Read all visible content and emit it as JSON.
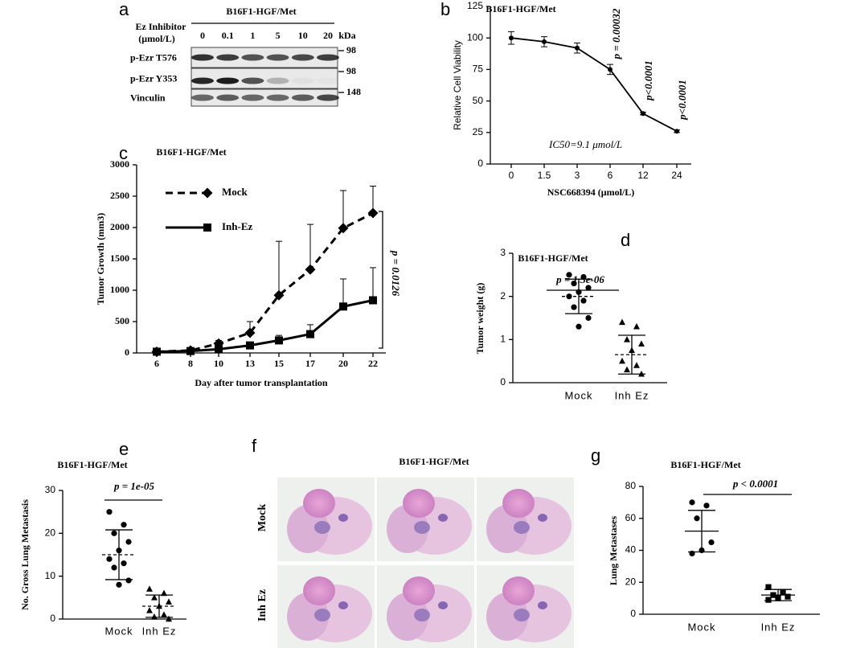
{
  "blot": {
    "panel": "a",
    "title": "B16F1-HGF/Met",
    "treatment": [
      "Ez Inhibitor",
      "(μmol/L)"
    ],
    "lanes": [
      "0",
      "0.1",
      "1",
      "5",
      "10",
      "20"
    ],
    "unit": "kDa",
    "rows": [
      {
        "label": "p-Ezr T576",
        "marker": "98"
      },
      {
        "label": "p-Ezr Y353",
        "marker": "98"
      },
      {
        "label": "Vinculin",
        "marker": "148"
      }
    ]
  },
  "histology": {
    "panel": "f",
    "title": "B16F1-HGF/Met",
    "rows": [
      "Mock",
      "Inh Ez"
    ]
  },
  "chart_data": [
    {
      "panel": "b",
      "type": "line",
      "title": "B16F1-HGF/Met",
      "xlabel": "NSC668394 (μmol/L)",
      "ylabel": "Relative Cell Viability",
      "categories": [
        "0",
        "1.5",
        "3",
        "6",
        "12",
        "24"
      ],
      "series": [
        {
          "color": "#000000",
          "marker": "circle",
          "values": [
            100,
            97,
            92,
            75,
            40,
            26
          ],
          "errors": [
            5,
            4,
            4,
            4,
            1,
            1
          ]
        }
      ],
      "ylim": [
        0,
        125
      ],
      "yticks": [
        0,
        25,
        50,
        75,
        100,
        125
      ],
      "annotations": [
        "p = 0.00032",
        "p<0.0001",
        "p<0.0001",
        "IC50=9.1 μmol/L"
      ]
    },
    {
      "panel": "c",
      "type": "line",
      "title": "B16F1-HGF/Met",
      "xlabel": "Day after tumor transplantation",
      "ylabel": "Tumor Growth (mm3)",
      "categories": [
        "6",
        "8",
        "10",
        "13",
        "15",
        "17",
        "20",
        "22"
      ],
      "series": [
        {
          "name": "Mock",
          "color": "#000000",
          "dashed": true,
          "marker": "diamond",
          "values": [
            20,
            40,
            150,
            320,
            920,
            1330,
            1990,
            2230
          ],
          "errors": [
            0,
            0,
            50,
            180,
            860,
            720,
            600,
            430
          ]
        },
        {
          "name": "Inh-Ez",
          "color": "#000000",
          "dashed": false,
          "marker": "square",
          "values": [
            20,
            30,
            60,
            120,
            200,
            300,
            740,
            840
          ],
          "errors": [
            0,
            0,
            0,
            0,
            80,
            150,
            440,
            520
          ]
        }
      ],
      "ylim": [
        0,
        3000
      ],
      "yticks": [
        0,
        500,
        1000,
        1500,
        2000,
        2500,
        3000
      ],
      "annotations": [
        "p = 0.0126"
      ]
    },
    {
      "panel": "d",
      "type": "dot",
      "title": "B16F1-HGF/Met",
      "ylabel": "Tumor weight (g)",
      "categories": [
        "Mock",
        "Inh Ez"
      ],
      "groups": [
        {
          "marker": "circle",
          "values": [
            2.5,
            2.45,
            2.3,
            2.2,
            2.1,
            2.0,
            1.9,
            1.75,
            1.5,
            1.3
          ],
          "mean": 2.0,
          "sd": 0.4
        },
        {
          "marker": "triangle",
          "values": [
            1.4,
            1.3,
            1.0,
            0.9,
            0.75,
            0.5,
            0.4,
            0.3,
            0.2
          ],
          "mean": 0.65,
          "sd": 0.45
        }
      ],
      "mean_dashed": true,
      "ylim": [
        0,
        3
      ],
      "yticks": [
        0,
        1,
        2,
        3
      ],
      "annotations": [
        "p = 1.3e-06"
      ]
    },
    {
      "panel": "e",
      "type": "dot",
      "title": "B16F1-HGF/Met",
      "ylabel": "No. Gross Lung Metastasis",
      "categories": [
        "Mock",
        "Inh Ez"
      ],
      "groups": [
        {
          "marker": "circle",
          "values": [
            25,
            22,
            20,
            18,
            16,
            14,
            13,
            12,
            9,
            8
          ],
          "mean": 15,
          "sd": 5.8
        },
        {
          "marker": "triangle",
          "values": [
            7,
            6,
            5,
            4,
            3,
            2,
            1,
            0.5,
            0
          ],
          "mean": 3,
          "sd": 2.6
        }
      ],
      "mean_dashed": true,
      "ylim": [
        0,
        30
      ],
      "yticks": [
        0,
        10,
        20,
        30
      ],
      "annotations": [
        "p = 1e-05"
      ]
    },
    {
      "panel": "g",
      "type": "dot",
      "title": "B16F1-HGF/Met",
      "ylabel": "Lung Metastases",
      "categories": [
        "Mock",
        "Inh Ez"
      ],
      "groups": [
        {
          "marker": "circle",
          "values": [
            70,
            68,
            60,
            45,
            40,
            38
          ],
          "mean": 52,
          "sd": 13
        },
        {
          "marker": "square",
          "values": [
            17,
            14,
            12,
            11,
            10,
            9
          ],
          "mean": 12,
          "sd": 3.5
        }
      ],
      "mean_dashed": false,
      "ylim": [
        0,
        80
      ],
      "yticks": [
        0,
        20,
        40,
        60,
        80
      ],
      "annotations": [
        "p < 0.0001"
      ]
    }
  ]
}
